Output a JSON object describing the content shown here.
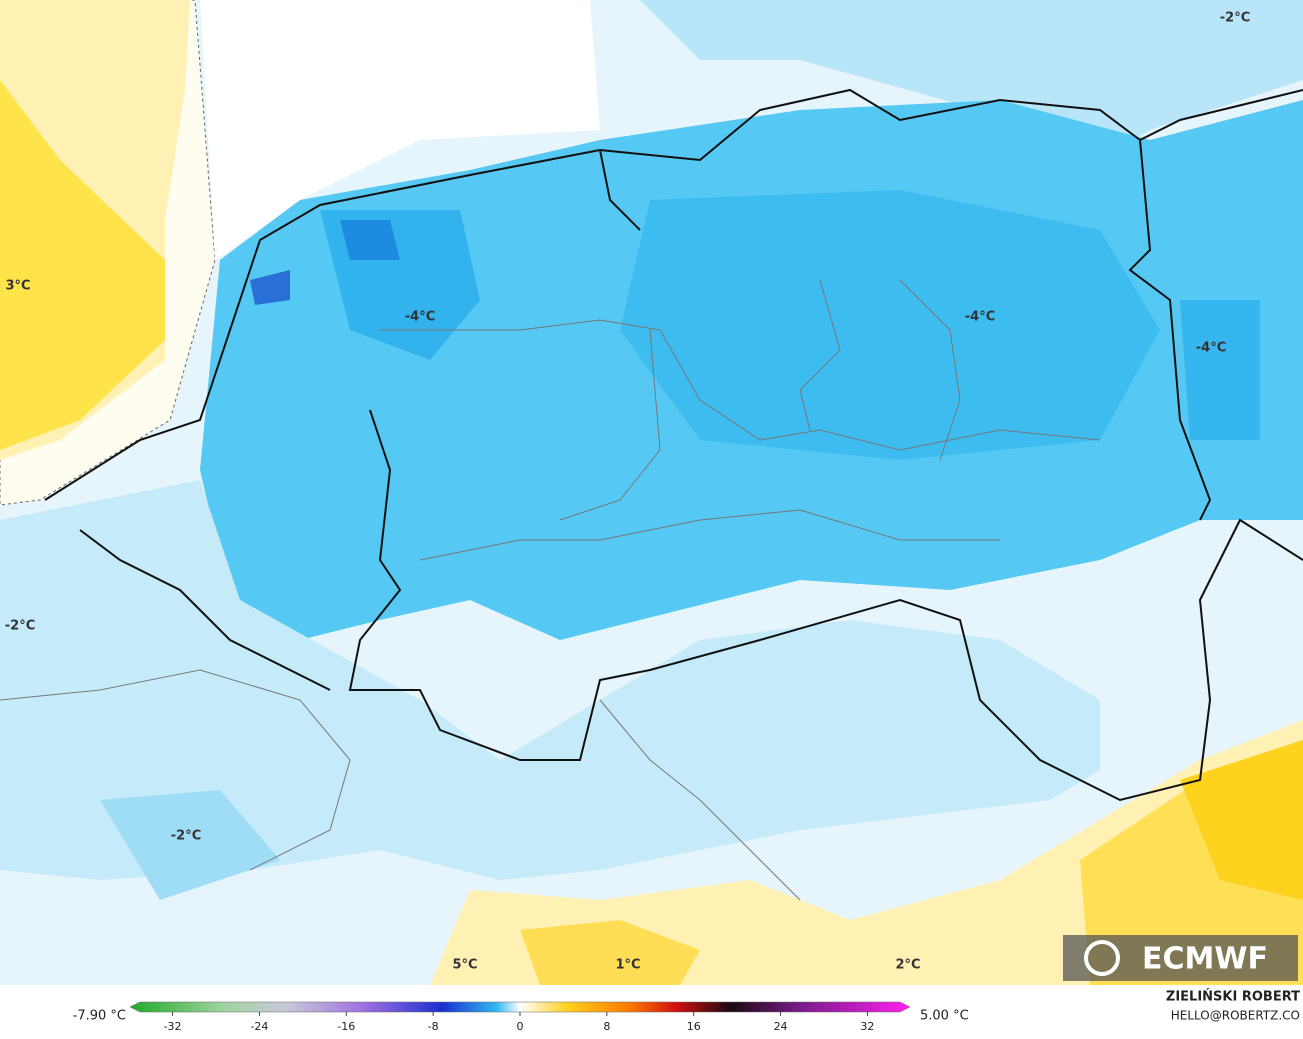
{
  "map": {
    "contour_labels": [
      "-2°C",
      "3°C",
      "-4°C",
      "-4°C",
      "-4°C",
      "-2°C",
      "-2°C",
      "5°C",
      "1°C",
      "2°C"
    ],
    "min_label": "-7.90 °C",
    "max_label": "5.00 °C",
    "colorbar": {
      "lim": [
        -35,
        35
      ],
      "ticks": [
        -32,
        -24,
        -16,
        -8,
        0,
        8,
        16,
        24,
        32
      ]
    },
    "author": "ZIELIŃSKI ROBERT",
    "contact": "HELLO@ROBERTZ.CO",
    "logo": "ECMWF"
  }
}
